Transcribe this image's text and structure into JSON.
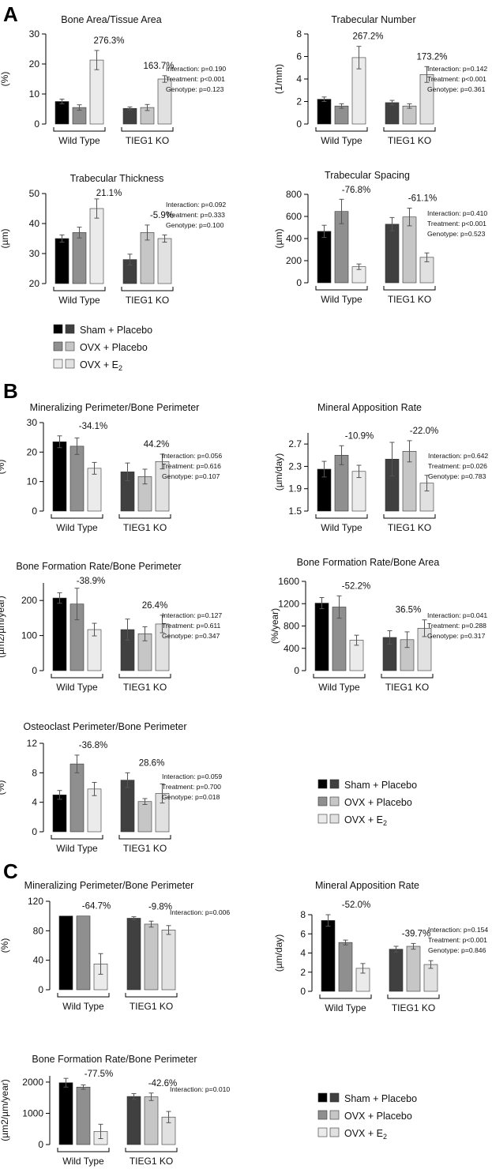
{
  "panels": [
    {
      "letter": "A",
      "label_pos": "top-left"
    },
    {
      "letter": "B",
      "label_pos": "top-left"
    },
    {
      "letter": "C",
      "label_pos": "top-left"
    }
  ],
  "colors": {
    "sham_wt": "#000000",
    "sham_ko": "#404040",
    "ovx_wt": "#8f8f8f",
    "ovx_ko": "#c6c6c6",
    "e2_wt": "#ebebeb",
    "e2_ko": "#e1e1e1",
    "error_bar": "#555555"
  },
  "legends": [
    {
      "items": [
        {
          "text": "Sham + Placebo",
          "sub": ""
        },
        {
          "text": "OVX + Placebo",
          "sub": ""
        },
        {
          "text": "OVX + E",
          "sub": "2"
        }
      ]
    },
    {
      "items": [
        {
          "text": "Sham + Placebo",
          "sub": ""
        },
        {
          "text": "OVX + Placebo",
          "sub": ""
        },
        {
          "text": "OVX + E",
          "sub": "2"
        }
      ]
    },
    {
      "items": [
        {
          "text": "Sham + Placebo",
          "sub": ""
        },
        {
          "text": "OVX + Placebo",
          "sub": ""
        },
        {
          "text": "OVX + E",
          "sub": "2"
        }
      ]
    }
  ],
  "chart_data": [
    {
      "type": "bar",
      "panel": "A",
      "title": "Bone Area/Tissue Area",
      "ylabel": "(%)",
      "ylim": [
        0,
        30
      ],
      "yticks": [
        0,
        10,
        20,
        30
      ],
      "yticklabels": [
        "0",
        "10",
        "20",
        "30"
      ],
      "categories": [
        "Wild Type",
        "TIEG1 KO"
      ],
      "series": [
        {
          "values": [
            7.5,
            5.2
          ]
        },
        {
          "values": [
            5.5,
            5.5
          ]
        },
        {
          "values": [
            21.3,
            15.0
          ]
        }
      ],
      "errors": [
        [
          0.8,
          0.5
        ],
        [
          0.9,
          1.0
        ],
        [
          3.2,
          1.1
        ]
      ],
      "annotations": [
        "276.3%",
        "163.7%"
      ],
      "stats": [
        "Interaction: p=0.190",
        "Treatment: p<0.001",
        "Genotype: p=0.123"
      ]
    },
    {
      "type": "bar",
      "panel": "A",
      "title": "Trabecular Number",
      "ylabel": "(1/mm)",
      "ylim": [
        0,
        8
      ],
      "yticks": [
        0,
        2,
        4,
        6,
        8
      ],
      "yticklabels": [
        "0",
        "2",
        "4",
        "6",
        "8"
      ],
      "categories": [
        "Wild Type",
        "TIEG1 KO"
      ],
      "series": [
        {
          "values": [
            2.2,
            1.9
          ]
        },
        {
          "values": [
            1.6,
            1.6
          ]
        },
        {
          "values": [
            5.9,
            4.4
          ]
        }
      ],
      "errors": [
        [
          0.2,
          0.2
        ],
        [
          0.2,
          0.2
        ],
        [
          1.0,
          0.7
        ]
      ],
      "annotations": [
        "267.2%",
        "173.2%"
      ],
      "stats": [
        "Interaction: p=0.142",
        "Treatment: p<0.001",
        "Genotype: p=0.361"
      ]
    },
    {
      "type": "bar",
      "panel": "A",
      "title": "Trabecular Thickness",
      "ylabel": "(µm)",
      "ylim": [
        20,
        50
      ],
      "yticks": [
        20,
        30,
        40,
        50
      ],
      "yticklabels": [
        "20",
        "30",
        "40",
        "50"
      ],
      "categories": [
        "Wild Type",
        "TIEG1 KO"
      ],
      "series": [
        {
          "values": [
            35,
            28
          ]
        },
        {
          "values": [
            37,
            37
          ]
        },
        {
          "values": [
            45,
            35
          ]
        }
      ],
      "errors": [
        [
          1.2,
          1.8
        ],
        [
          1.8,
          2.5
        ],
        [
          3.2,
          1.2
        ]
      ],
      "annotations": [
        "21.1%",
        "-5.9%"
      ],
      "stats": [
        "Interaction: p=0.092",
        "Treatment: p=0.333",
        "Genotype: p=0.100"
      ]
    },
    {
      "type": "bar",
      "panel": "A",
      "title": "Trabecular Spacing",
      "ylabel": "(µm)",
      "ylim": [
        0,
        800
      ],
      "yticks": [
        0,
        200,
        400,
        600,
        800
      ],
      "yticklabels": [
        "0",
        "200",
        "400",
        "600",
        "800"
      ],
      "categories": [
        "Wild Type",
        "TIEG1 KO"
      ],
      "series": [
        {
          "values": [
            465,
            530
          ]
        },
        {
          "values": [
            645,
            595
          ]
        },
        {
          "values": [
            145,
            230
          ]
        }
      ],
      "errors": [
        [
          55,
          60
        ],
        [
          110,
          80
        ],
        [
          25,
          40
        ]
      ],
      "annotations": [
        "-76.8%",
        "-61.1%"
      ],
      "stats": [
        "Interaction: p=0.410",
        "Treatment: p<0.001",
        "Genotype: p=0.523"
      ]
    },
    {
      "type": "bar",
      "panel": "B",
      "title": "Mineralizing Perimeter/Bone Perimeter",
      "ylabel": "(%)",
      "ylim": [
        0,
        30
      ],
      "yticks": [
        0,
        10,
        20,
        30
      ],
      "yticklabels": [
        "0",
        "10",
        "20",
        "30"
      ],
      "categories": [
        "Wild Type",
        "TIEG1 KO"
      ],
      "series": [
        {
          "values": [
            23.5,
            13.3
          ]
        },
        {
          "values": [
            22.0,
            11.7
          ]
        },
        {
          "values": [
            14.5,
            16.8
          ]
        }
      ],
      "errors": [
        [
          2.0,
          3.0
        ],
        [
          2.8,
          2.5
        ],
        [
          2.0,
          2.5
        ]
      ],
      "annotations": [
        "-34.1%",
        "44.2%"
      ],
      "stats": [
        "Interaction: p=0.056",
        "Treatment: p=0.616",
        "Genotype: p=0.107"
      ]
    },
    {
      "type": "bar",
      "panel": "B",
      "title": "Mineral Apposition Rate",
      "ylabel": "(µm/day)",
      "ylim": [
        1.5,
        2.9
      ],
      "yticks": [
        1.5,
        1.9,
        2.3,
        2.7
      ],
      "yticklabels": [
        "1.5",
        "1.9",
        "2.3",
        "2.7"
      ],
      "categories": [
        "Wild Type",
        "TIEG1 KO"
      ],
      "series": [
        {
          "values": [
            2.25,
            2.43
          ]
        },
        {
          "values": [
            2.5,
            2.57
          ]
        },
        {
          "values": [
            2.21,
            2.0
          ]
        }
      ],
      "errors": [
        [
          0.14,
          0.3
        ],
        [
          0.17,
          0.19
        ],
        [
          0.11,
          0.14
        ]
      ],
      "annotations": [
        "-10.9%",
        "-22.0%"
      ],
      "stats": [
        "Interaction: p=0.642",
        "Treatment: p=0.026",
        "Genotype: p=0.783"
      ]
    },
    {
      "type": "bar",
      "panel": "B",
      "title": "Bone Formation Rate/Bone Perimeter",
      "ylabel": "(µm2/µm/year)",
      "ylim": [
        0,
        250
      ],
      "yticks": [
        0,
        100,
        200
      ],
      "yticklabels": [
        "0",
        "100",
        "200"
      ],
      "categories": [
        "Wild Type",
        "TIEG1 KO"
      ],
      "series": [
        {
          "values": [
            207,
            117
          ]
        },
        {
          "values": [
            190,
            105
          ]
        },
        {
          "values": [
            117,
            133
          ]
        }
      ],
      "errors": [
        [
          15,
          30
        ],
        [
          45,
          20
        ],
        [
          18,
          25
        ]
      ],
      "annotations": [
        "-38.9%",
        "26.4%"
      ],
      "stats": [
        "Interaction: p=0.127",
        "Treatment: p=0.611",
        "Genotype: p=0.347"
      ]
    },
    {
      "type": "bar",
      "panel": "B",
      "title": "Bone Formation Rate/Bone Area",
      "ylabel": "(%/year)",
      "ylim": [
        0,
        1600
      ],
      "yticks": [
        0,
        400,
        800,
        1200,
        1600
      ],
      "yticklabels": [
        "0",
        "400",
        "800",
        "1200",
        "1600"
      ],
      "categories": [
        "Wild Type",
        "TIEG1 KO"
      ],
      "series": [
        {
          "values": [
            1210,
            595
          ]
        },
        {
          "values": [
            1140,
            555
          ]
        },
        {
          "values": [
            545,
            760
          ]
        }
      ],
      "errors": [
        [
          100,
          120
        ],
        [
          200,
          140
        ],
        [
          90,
          150
        ]
      ],
      "annotations": [
        "-52.2%",
        "36.5%"
      ],
      "stats": [
        "Interaction: p=0.041",
        "Treatment: p=0.288",
        "Genotype: p=0.317"
      ]
    },
    {
      "type": "bar",
      "panel": "B",
      "title": "Osteoclast Perimeter/Bone Perimeter",
      "ylabel": "(%)",
      "ylim": [
        0,
        12
      ],
      "yticks": [
        0,
        4,
        8,
        12
      ],
      "yticklabels": [
        "0",
        "4",
        "8",
        "12"
      ],
      "categories": [
        "Wild Type",
        "TIEG1 KO"
      ],
      "series": [
        {
          "values": [
            5.0,
            7.0
          ]
        },
        {
          "values": [
            9.2,
            4.1
          ]
        },
        {
          "values": [
            5.8,
            5.2
          ]
        }
      ],
      "errors": [
        [
          0.6,
          1.0
        ],
        [
          1.2,
          0.4
        ],
        [
          0.9,
          1.3
        ]
      ],
      "annotations": [
        "-36.8%",
        "28.6%"
      ],
      "stats": [
        "Interaction: p=0.059",
        "Treatment: p=0.700",
        "Genotype: p=0.018"
      ]
    },
    {
      "type": "bar",
      "panel": "C",
      "title": "Mineralizing Perimeter/Bone Perimeter",
      "ylabel": "(%)",
      "ylim": [
        0,
        120
      ],
      "yticks": [
        0,
        40,
        80,
        120
      ],
      "yticklabels": [
        "0",
        "40",
        "80",
        "120"
      ],
      "categories": [
        "Wild Type",
        "TIEG1 KO"
      ],
      "series": [
        {
          "values": [
            100,
            97
          ]
        },
        {
          "values": [
            100,
            89
          ]
        },
        {
          "values": [
            35,
            81
          ]
        }
      ],
      "errors": [
        [
          0,
          2
        ],
        [
          0,
          4
        ],
        [
          14,
          6
        ]
      ],
      "annotations": [
        "-64.7%",
        "-9.8%"
      ],
      "stats": [
        "Interaction: p=0.006"
      ]
    },
    {
      "type": "bar",
      "panel": "C",
      "title": "Mineral Apposition Rate",
      "ylabel": "(µm/day)",
      "ylim": [
        0,
        8
      ],
      "yticks": [
        0,
        2,
        4,
        6,
        8
      ],
      "yticklabels": [
        "0",
        "2",
        "4",
        "6",
        "8"
      ],
      "categories": [
        "Wild Type",
        "TIEG1 KO"
      ],
      "series": [
        {
          "values": [
            7.4,
            4.4
          ]
        },
        {
          "values": [
            5.1,
            4.7
          ]
        },
        {
          "values": [
            2.4,
            2.8
          ]
        }
      ],
      "errors": [
        [
          0.6,
          0.3
        ],
        [
          0.25,
          0.3
        ],
        [
          0.5,
          0.4
        ]
      ],
      "annotations": [
        "-52.0%",
        "-39.7%"
      ],
      "stats": [
        "Interaction: p=0.154",
        "Treatment: p<0.001",
        "Genotype: p=0.846"
      ]
    },
    {
      "type": "bar",
      "panel": "C",
      "title": "Bone Formation Rate/Bone Perimeter",
      "ylabel": "(µm2/µm/year)",
      "ylim": [
        0,
        2200
      ],
      "yticks": [
        0,
        1000,
        2000
      ],
      "yticklabels": [
        "0",
        "1000",
        "2000"
      ],
      "categories": [
        "Wild Type",
        "TIEG1 KO"
      ],
      "series": [
        {
          "values": [
            1980,
            1540
          ]
        },
        {
          "values": [
            1840,
            1530
          ]
        },
        {
          "values": [
            420,
            880
          ]
        }
      ],
      "errors": [
        [
          140,
          90
        ],
        [
          70,
          120
        ],
        [
          230,
          180
        ]
      ],
      "annotations": [
        "-77.5%",
        "-42.6%"
      ],
      "stats": [
        "Interaction: p=0.010"
      ]
    }
  ]
}
